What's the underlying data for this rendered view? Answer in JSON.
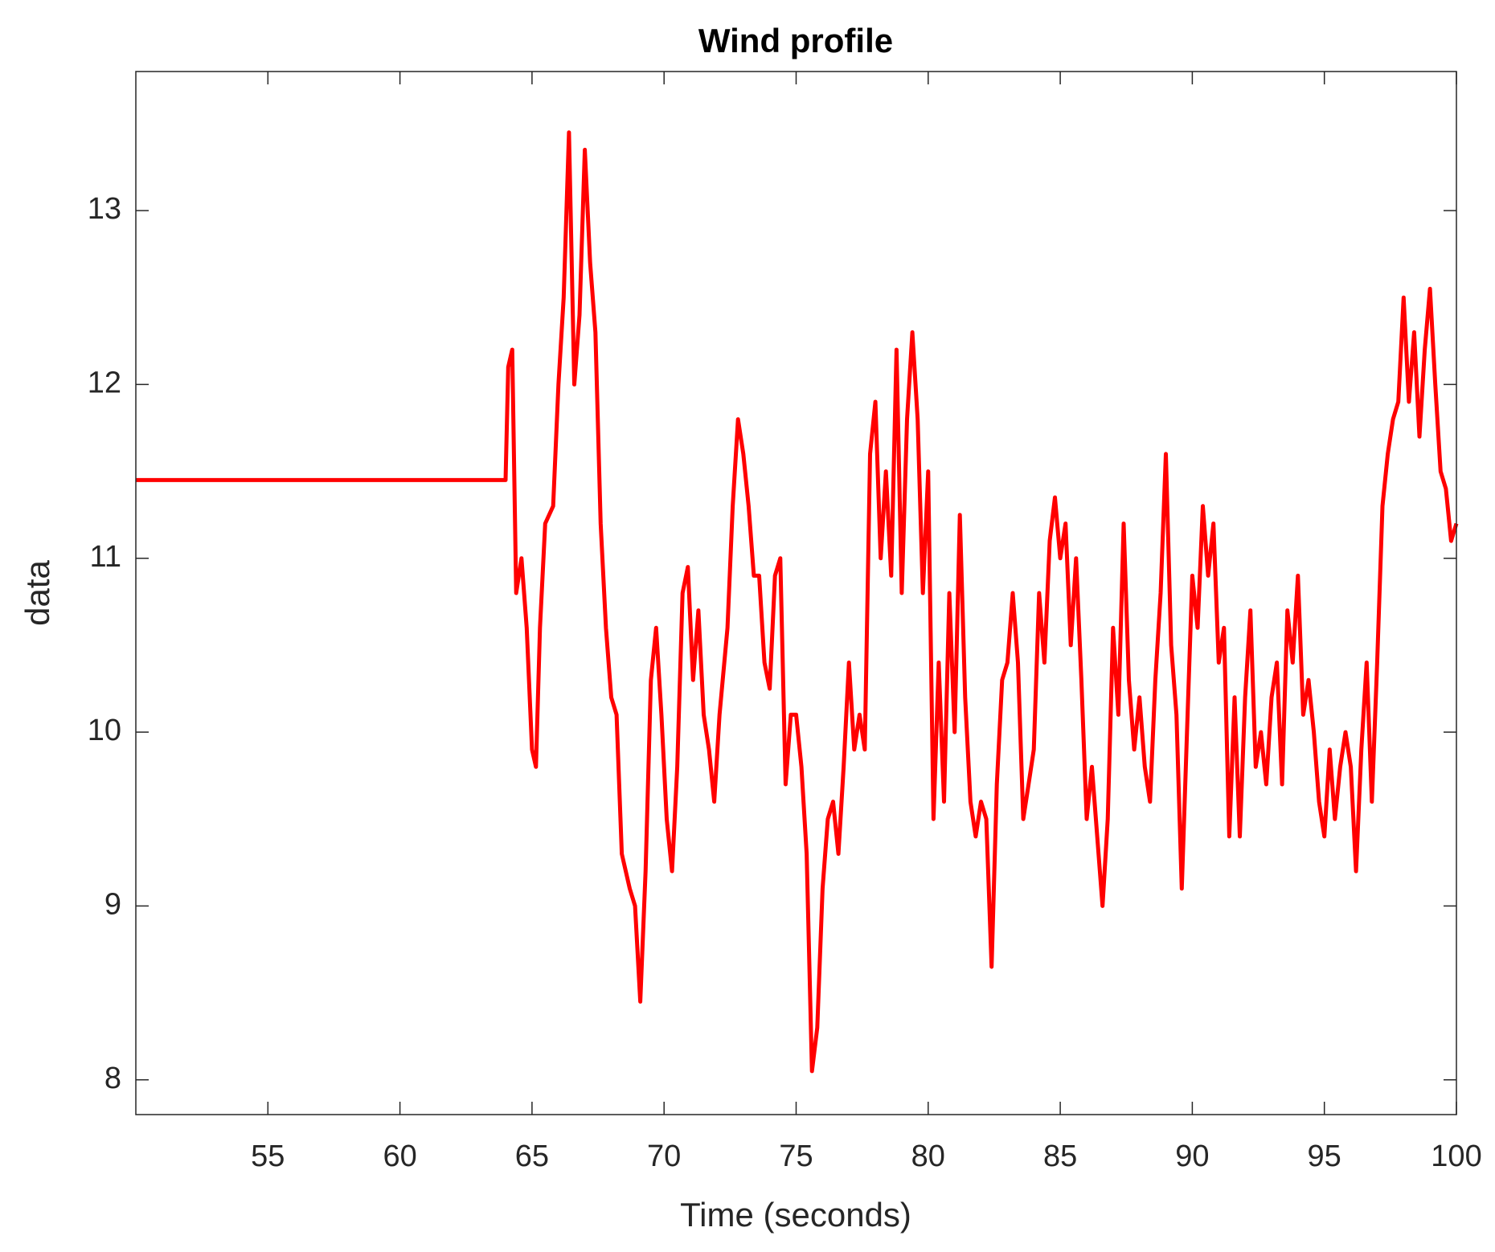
{
  "chart_data": {
    "type": "line",
    "title": "Wind profile",
    "x_label": "Time (seconds)",
    "y_label": "data",
    "color": "#ff0000",
    "grid": false,
    "xlim": [
      50,
      100
    ],
    "xticks": [
      55,
      60,
      65,
      70,
      75,
      80,
      85,
      90,
      95,
      100
    ],
    "ylim": [
      7.8,
      13.8
    ],
    "yticks": [
      8,
      9,
      10,
      11,
      12,
      13
    ],
    "x": [
      50,
      64.0,
      64.1,
      64.25,
      64.4,
      64.6,
      64.8,
      65.0,
      65.15,
      65.3,
      65.5,
      65.8,
      66.0,
      66.2,
      66.4,
      66.6,
      66.8,
      67.0,
      67.2,
      67.4,
      67.6,
      67.8,
      68.0,
      68.2,
      68.4,
      68.7,
      68.9,
      69.1,
      69.3,
      69.5,
      69.7,
      69.9,
      70.1,
      70.3,
      70.5,
      70.7,
      70.9,
      71.1,
      71.3,
      71.5,
      71.7,
      71.9,
      72.1,
      72.4,
      72.6,
      72.8,
      73.0,
      73.2,
      73.4,
      73.6,
      73.8,
      74.0,
      74.2,
      74.4,
      74.6,
      74.8,
      75.0,
      75.2,
      75.4,
      75.6,
      75.8,
      76.0,
      76.2,
      76.4,
      76.6,
      76.8,
      77.0,
      77.2,
      77.4,
      77.6,
      77.8,
      78.0,
      78.2,
      78.4,
      78.6,
      78.8,
      79.0,
      79.2,
      79.4,
      79.6,
      79.8,
      80.0,
      80.2,
      80.4,
      80.6,
      80.8,
      81.0,
      81.2,
      81.4,
      81.6,
      81.8,
      82.0,
      82.2,
      82.4,
      82.6,
      82.8,
      83.0,
      83.2,
      83.4,
      83.6,
      83.8,
      84.0,
      84.2,
      84.4,
      84.6,
      84.8,
      85.0,
      85.2,
      85.4,
      85.6,
      85.8,
      86.0,
      86.2,
      86.4,
      86.6,
      86.8,
      87.0,
      87.2,
      87.4,
      87.6,
      87.8,
      88.0,
      88.2,
      88.4,
      88.6,
      88.8,
      89.0,
      89.2,
      89.4,
      89.6,
      89.8,
      90.0,
      90.2,
      90.4,
      90.6,
      90.8,
      91.0,
      91.2,
      91.4,
      91.6,
      91.8,
      92.0,
      92.2,
      92.4,
      92.6,
      92.8,
      93.0,
      93.2,
      93.4,
      93.6,
      93.8,
      94.0,
      94.2,
      94.4,
      94.6,
      94.8,
      95.0,
      95.2,
      95.4,
      95.6,
      95.8,
      96.0,
      96.2,
      96.4,
      96.6,
      96.8,
      97.0,
      97.2,
      97.4,
      97.6,
      97.8,
      98.0,
      98.2,
      98.4,
      98.6,
      98.8,
      99.0,
      99.2,
      99.4,
      99.6,
      99.8,
      100.0
    ],
    "values": [
      11.45,
      11.45,
      12.1,
      12.2,
      10.8,
      11.0,
      10.6,
      9.9,
      9.8,
      10.6,
      11.2,
      11.3,
      12.0,
      12.5,
      13.45,
      12.0,
      12.4,
      13.35,
      12.7,
      12.3,
      11.2,
      10.6,
      10.2,
      10.1,
      9.3,
      9.1,
      9.0,
      8.45,
      9.2,
      10.3,
      10.6,
      10.1,
      9.5,
      9.2,
      9.8,
      10.8,
      10.95,
      10.3,
      10.7,
      10.1,
      9.9,
      9.6,
      10.1,
      10.6,
      11.3,
      11.8,
      11.6,
      11.3,
      10.9,
      10.9,
      10.4,
      10.25,
      10.9,
      11.0,
      9.7,
      10.1,
      10.1,
      9.8,
      9.3,
      8.05,
      8.3,
      9.1,
      9.5,
      9.6,
      9.3,
      9.8,
      10.4,
      9.9,
      10.1,
      9.9,
      11.6,
      11.9,
      11.0,
      11.5,
      10.9,
      12.2,
      10.8,
      11.8,
      12.3,
      11.8,
      10.8,
      11.5,
      9.5,
      10.4,
      9.6,
      10.8,
      10.0,
      11.25,
      10.2,
      9.6,
      9.4,
      9.6,
      9.5,
      8.65,
      9.7,
      10.3,
      10.4,
      10.8,
      10.4,
      9.5,
      9.7,
      9.9,
      10.8,
      10.4,
      11.1,
      11.35,
      11.0,
      11.2,
      10.5,
      11.0,
      10.3,
      9.5,
      9.8,
      9.4,
      9.0,
      9.5,
      10.6,
      10.1,
      11.2,
      10.3,
      9.9,
      10.2,
      9.8,
      9.6,
      10.3,
      10.8,
      11.6,
      10.5,
      10.1,
      9.1,
      10.0,
      10.9,
      10.6,
      11.3,
      10.9,
      11.2,
      10.4,
      10.6,
      9.4,
      10.2,
      9.4,
      10.2,
      10.7,
      9.8,
      10.0,
      9.7,
      10.2,
      10.4,
      9.7,
      10.7,
      10.4,
      10.9,
      10.1,
      10.3,
      10.0,
      9.6,
      9.4,
      9.9,
      9.5,
      9.8,
      10.0,
      9.8,
      9.2,
      9.9,
      10.4,
      9.6,
      10.4,
      11.3,
      11.6,
      11.8,
      11.9,
      12.5,
      11.9,
      12.3,
      11.7,
      12.2,
      12.55,
      12.0,
      11.5,
      11.4,
      11.1,
      11.2
    ]
  }
}
